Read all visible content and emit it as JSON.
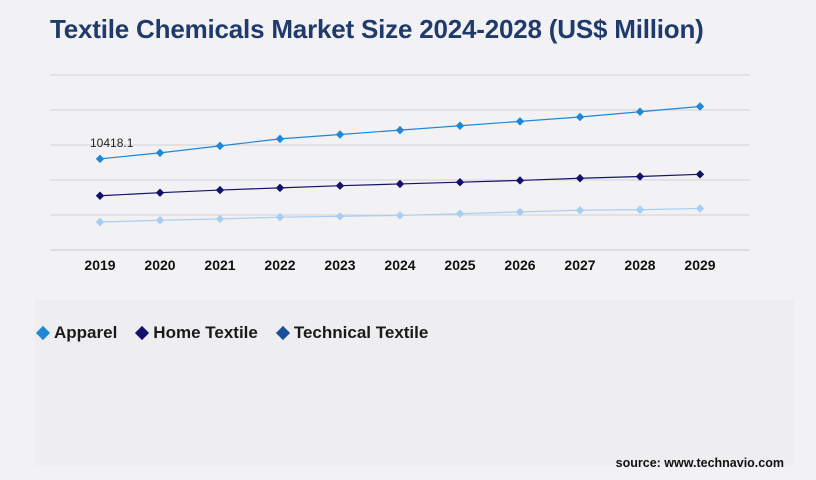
{
  "title": "Textile Chemicals Market Size 2024-2028 (US$ Million)",
  "source": "source: www.technavio.com",
  "chart_data": {
    "type": "line",
    "title": "Textile Chemicals Market Size 2024-2028 (US$ Million)",
    "xlabel": "",
    "ylabel": "",
    "categories": [
      "2019",
      "2020",
      "2021",
      "2022",
      "2023",
      "2024",
      "2025",
      "2026",
      "2027",
      "2028",
      "2029"
    ],
    "ylim": [
      0,
      20000
    ],
    "grid": true,
    "legend_position": "bottom-left",
    "series": [
      {
        "name": "Apparel",
        "color": "#1e88d6",
        "values": [
          10418.1,
          11100,
          11900,
          12700,
          13200,
          13700,
          14200,
          14700,
          15200,
          15800,
          16400
        ]
      },
      {
        "name": "Home Textile",
        "color": "#15106b",
        "values": [
          6200,
          6550,
          6850,
          7100,
          7350,
          7550,
          7750,
          7950,
          8200,
          8400,
          8650
        ]
      },
      {
        "name": "Technical Textile",
        "color": "#a8cdf4",
        "values": [
          3200,
          3400,
          3550,
          3750,
          3850,
          3950,
          4150,
          4350,
          4550,
          4600,
          4750
        ]
      }
    ],
    "data_labels": [
      {
        "series": 0,
        "index": 0,
        "text": "10418.1"
      }
    ]
  },
  "legend": [
    {
      "label": "Apparel",
      "marker_color": "#1e88d6"
    },
    {
      "label": "Home Textile",
      "marker_color": "#15106b"
    },
    {
      "label": "Technical Textile",
      "marker_color": "#1b4f9c"
    }
  ]
}
